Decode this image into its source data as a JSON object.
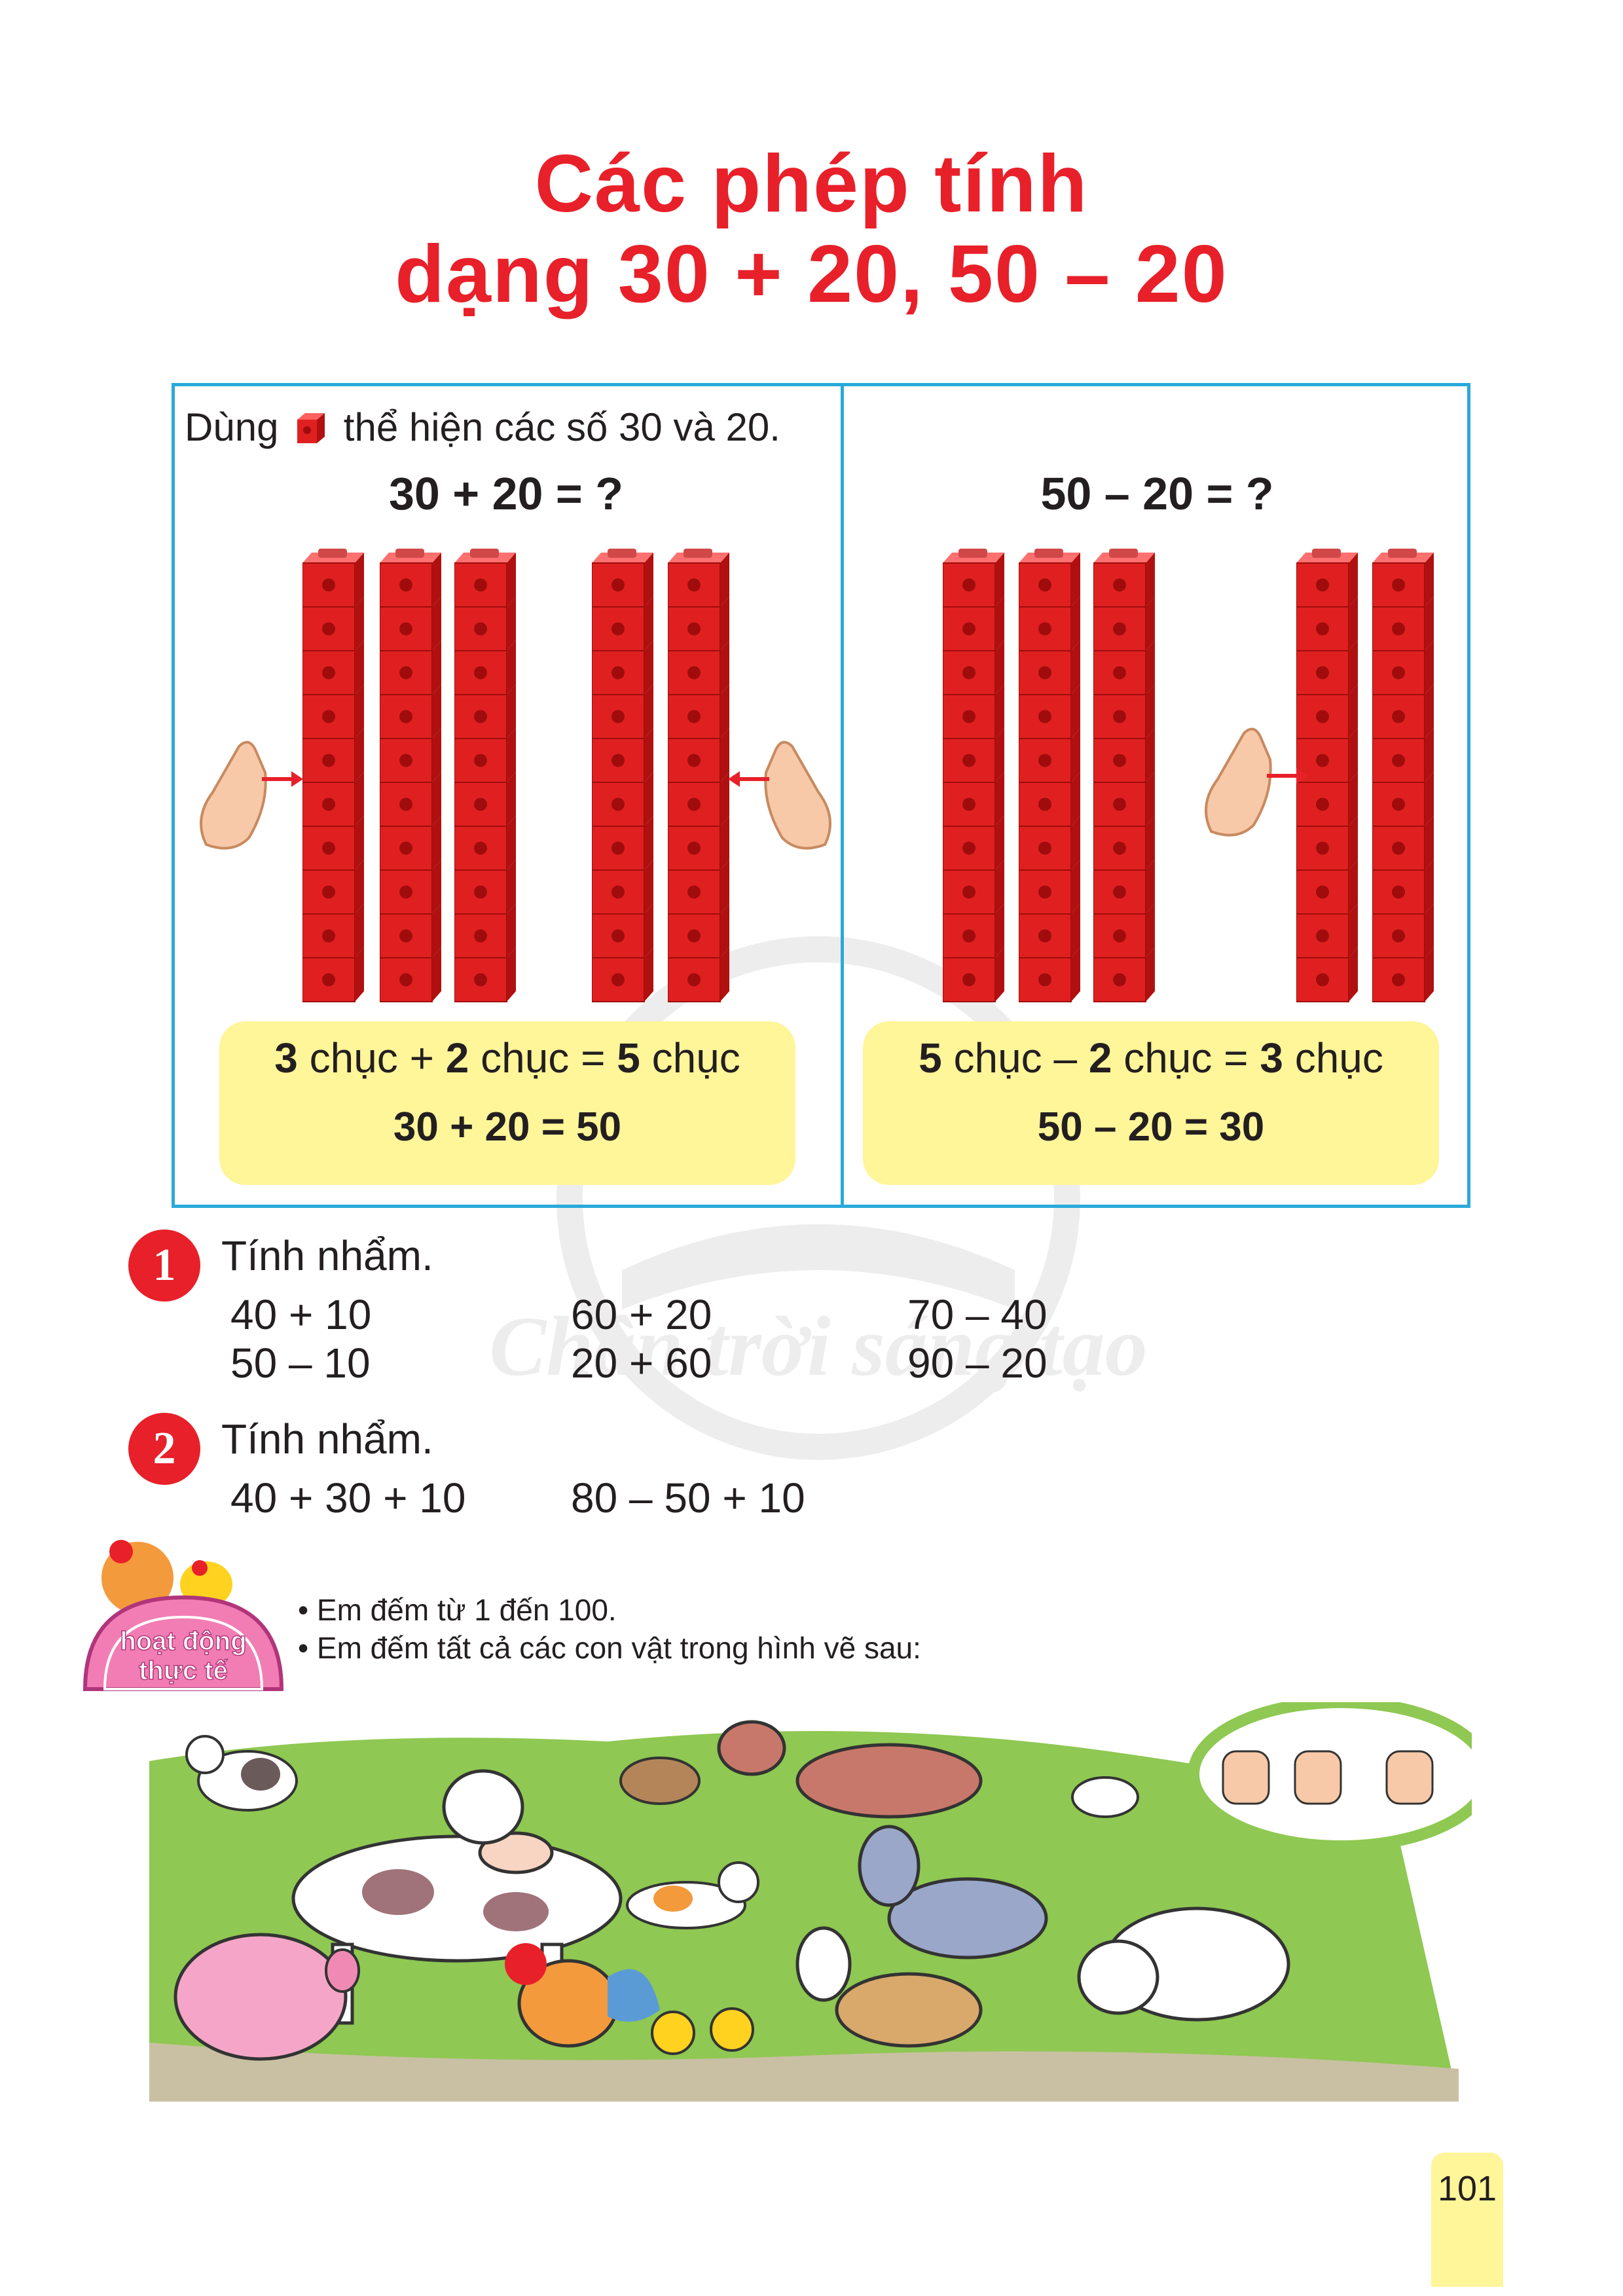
{
  "title": {
    "line1": "Các phép tính",
    "line2": "dạng 30 + 20, 50 – 20"
  },
  "intro": {
    "before": "Dùng",
    "after": "thể hiện các số 30 và 20."
  },
  "left_panel": {
    "question": "30 + 20 = ?",
    "summary_parts": [
      "3",
      " chục + ",
      "2",
      " chục = ",
      "5",
      " chục"
    ],
    "result": "30 + 20 = 50"
  },
  "right_panel": {
    "question": "50 – 20 = ?",
    "summary_parts": [
      "5",
      " chục – ",
      "2",
      " chục = ",
      "3",
      " chục"
    ],
    "result": "50 – 20 = 30"
  },
  "exercise1": {
    "number": "1",
    "title": "Tính nhẩm.",
    "columns": [
      [
        "40 + 10",
        "50 – 10"
      ],
      [
        "60 + 20",
        "20 + 60"
      ],
      [
        "70 – 40",
        "90 – 20"
      ]
    ]
  },
  "exercise2": {
    "number": "2",
    "title": "Tính nhẩm.",
    "items": [
      "40 + 30 + 10",
      "80 – 50 + 10"
    ]
  },
  "activity": {
    "badge_line1": "hoạt động",
    "badge_line2": "thực tế",
    "bullets": [
      "Em đếm từ 1 đến 100.",
      "Em đếm tất cả các con vật trong hình vẽ sau:"
    ]
  },
  "watermark": "Chân trời sáng tạo",
  "page_number": "101",
  "colors": {
    "title": "#e8202a",
    "frame": "#2aa9d9",
    "highlight": "#fff599",
    "cube": "#e02020"
  }
}
